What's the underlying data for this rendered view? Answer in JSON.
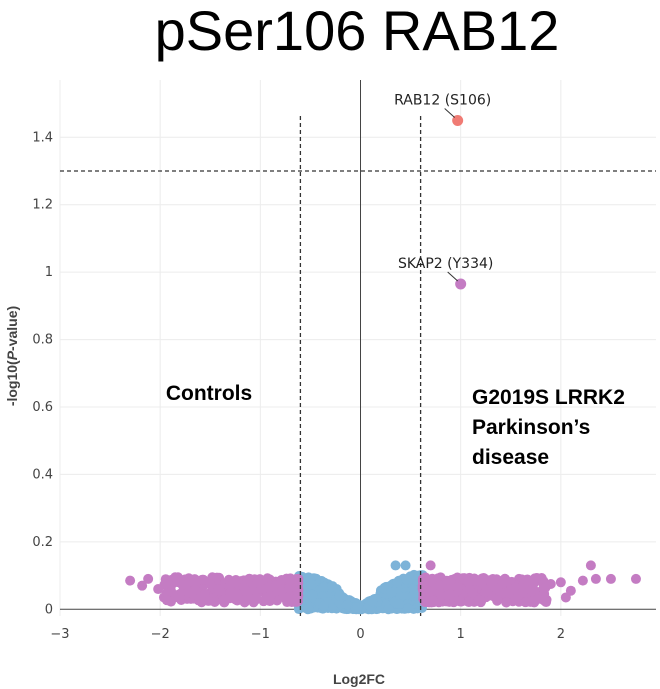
{
  "chart_data": {
    "type": "scatter",
    "title": "pSer106 RAB12",
    "xlabel": "Log2FC",
    "ylabel_prefix": "-log10(",
    "ylabel_italic": "P",
    "ylabel_suffix": "-value)",
    "xlim": [
      -3,
      2.95
    ],
    "ylim": [
      -0.02,
      1.57
    ],
    "x_ticks": [
      -3,
      -2,
      -1,
      0,
      1,
      2
    ],
    "x_tick_labels": [
      "−3",
      "−2",
      "−1",
      "0",
      "1",
      "2"
    ],
    "y_ticks": [
      0,
      0.2,
      0.4,
      0.6,
      0.8,
      1,
      1.2,
      1.4
    ],
    "y_tick_labels": [
      "0",
      "0.2",
      "0.4",
      "0.6",
      "0.8",
      "1",
      "1.2",
      "1.4"
    ],
    "grid": true,
    "thresholds": {
      "log2fc": [
        -0.6,
        0.6
      ],
      "neg_log10_p": 1.3
    },
    "colors": {
      "significant": "#f07b74",
      "fold_change": "#c47cc3",
      "not_significant": "#7db3d8",
      "threshold_line": "#333333",
      "zero_axis": "#444444",
      "grid": "#ececec"
    },
    "group_labels": {
      "left": [
        "Controls"
      ],
      "right": [
        "G2019S LRRK2",
        "Parkinson’s",
        "disease"
      ]
    },
    "highlighted": [
      {
        "label": "RAB12 (S106)",
        "x": 0.97,
        "y": 1.45,
        "category": "significant"
      },
      {
        "label": "SKAP2 (Y334)",
        "x": 1.0,
        "y": 0.965,
        "category": "fold_change"
      }
    ],
    "outlier_points": [
      {
        "x": -2.3,
        "y": 0.085
      },
      {
        "x": -2.12,
        "y": 0.09
      },
      {
        "x": -2.02,
        "y": 0.06
      },
      {
        "x": -1.95,
        "y": 0.075
      },
      {
        "x": -1.72,
        "y": 0.05
      },
      {
        "x": -1.6,
        "y": 0.035
      },
      {
        "x": -1.5,
        "y": 0.075
      },
      {
        "x": -1.42,
        "y": 0.06
      },
      {
        "x": -1.3,
        "y": 0.05
      },
      {
        "x": -1.15,
        "y": 0.055
      },
      {
        "x": -2.18,
        "y": 0.07
      },
      {
        "x": -1.85,
        "y": 0.095
      },
      {
        "x": 2.1,
        "y": 0.055
      },
      {
        "x": 2.22,
        "y": 0.085
      },
      {
        "x": 2.3,
        "y": 0.13
      },
      {
        "x": 2.35,
        "y": 0.09
      },
      {
        "x": 2.5,
        "y": 0.09
      },
      {
        "x": 2.75,
        "y": 0.09
      },
      {
        "x": 2.05,
        "y": 0.035
      },
      {
        "x": 1.72,
        "y": 0.06
      },
      {
        "x": 1.9,
        "y": 0.075
      },
      {
        "x": 1.55,
        "y": 0.065
      },
      {
        "x": 1.62,
        "y": 0.05
      },
      {
        "x": 2.0,
        "y": 0.08
      },
      {
        "x": 0.7,
        "y": 0.13
      },
      {
        "x": 0.45,
        "y": 0.13
      },
      {
        "x": 0.35,
        "y": 0.13
      }
    ]
  }
}
